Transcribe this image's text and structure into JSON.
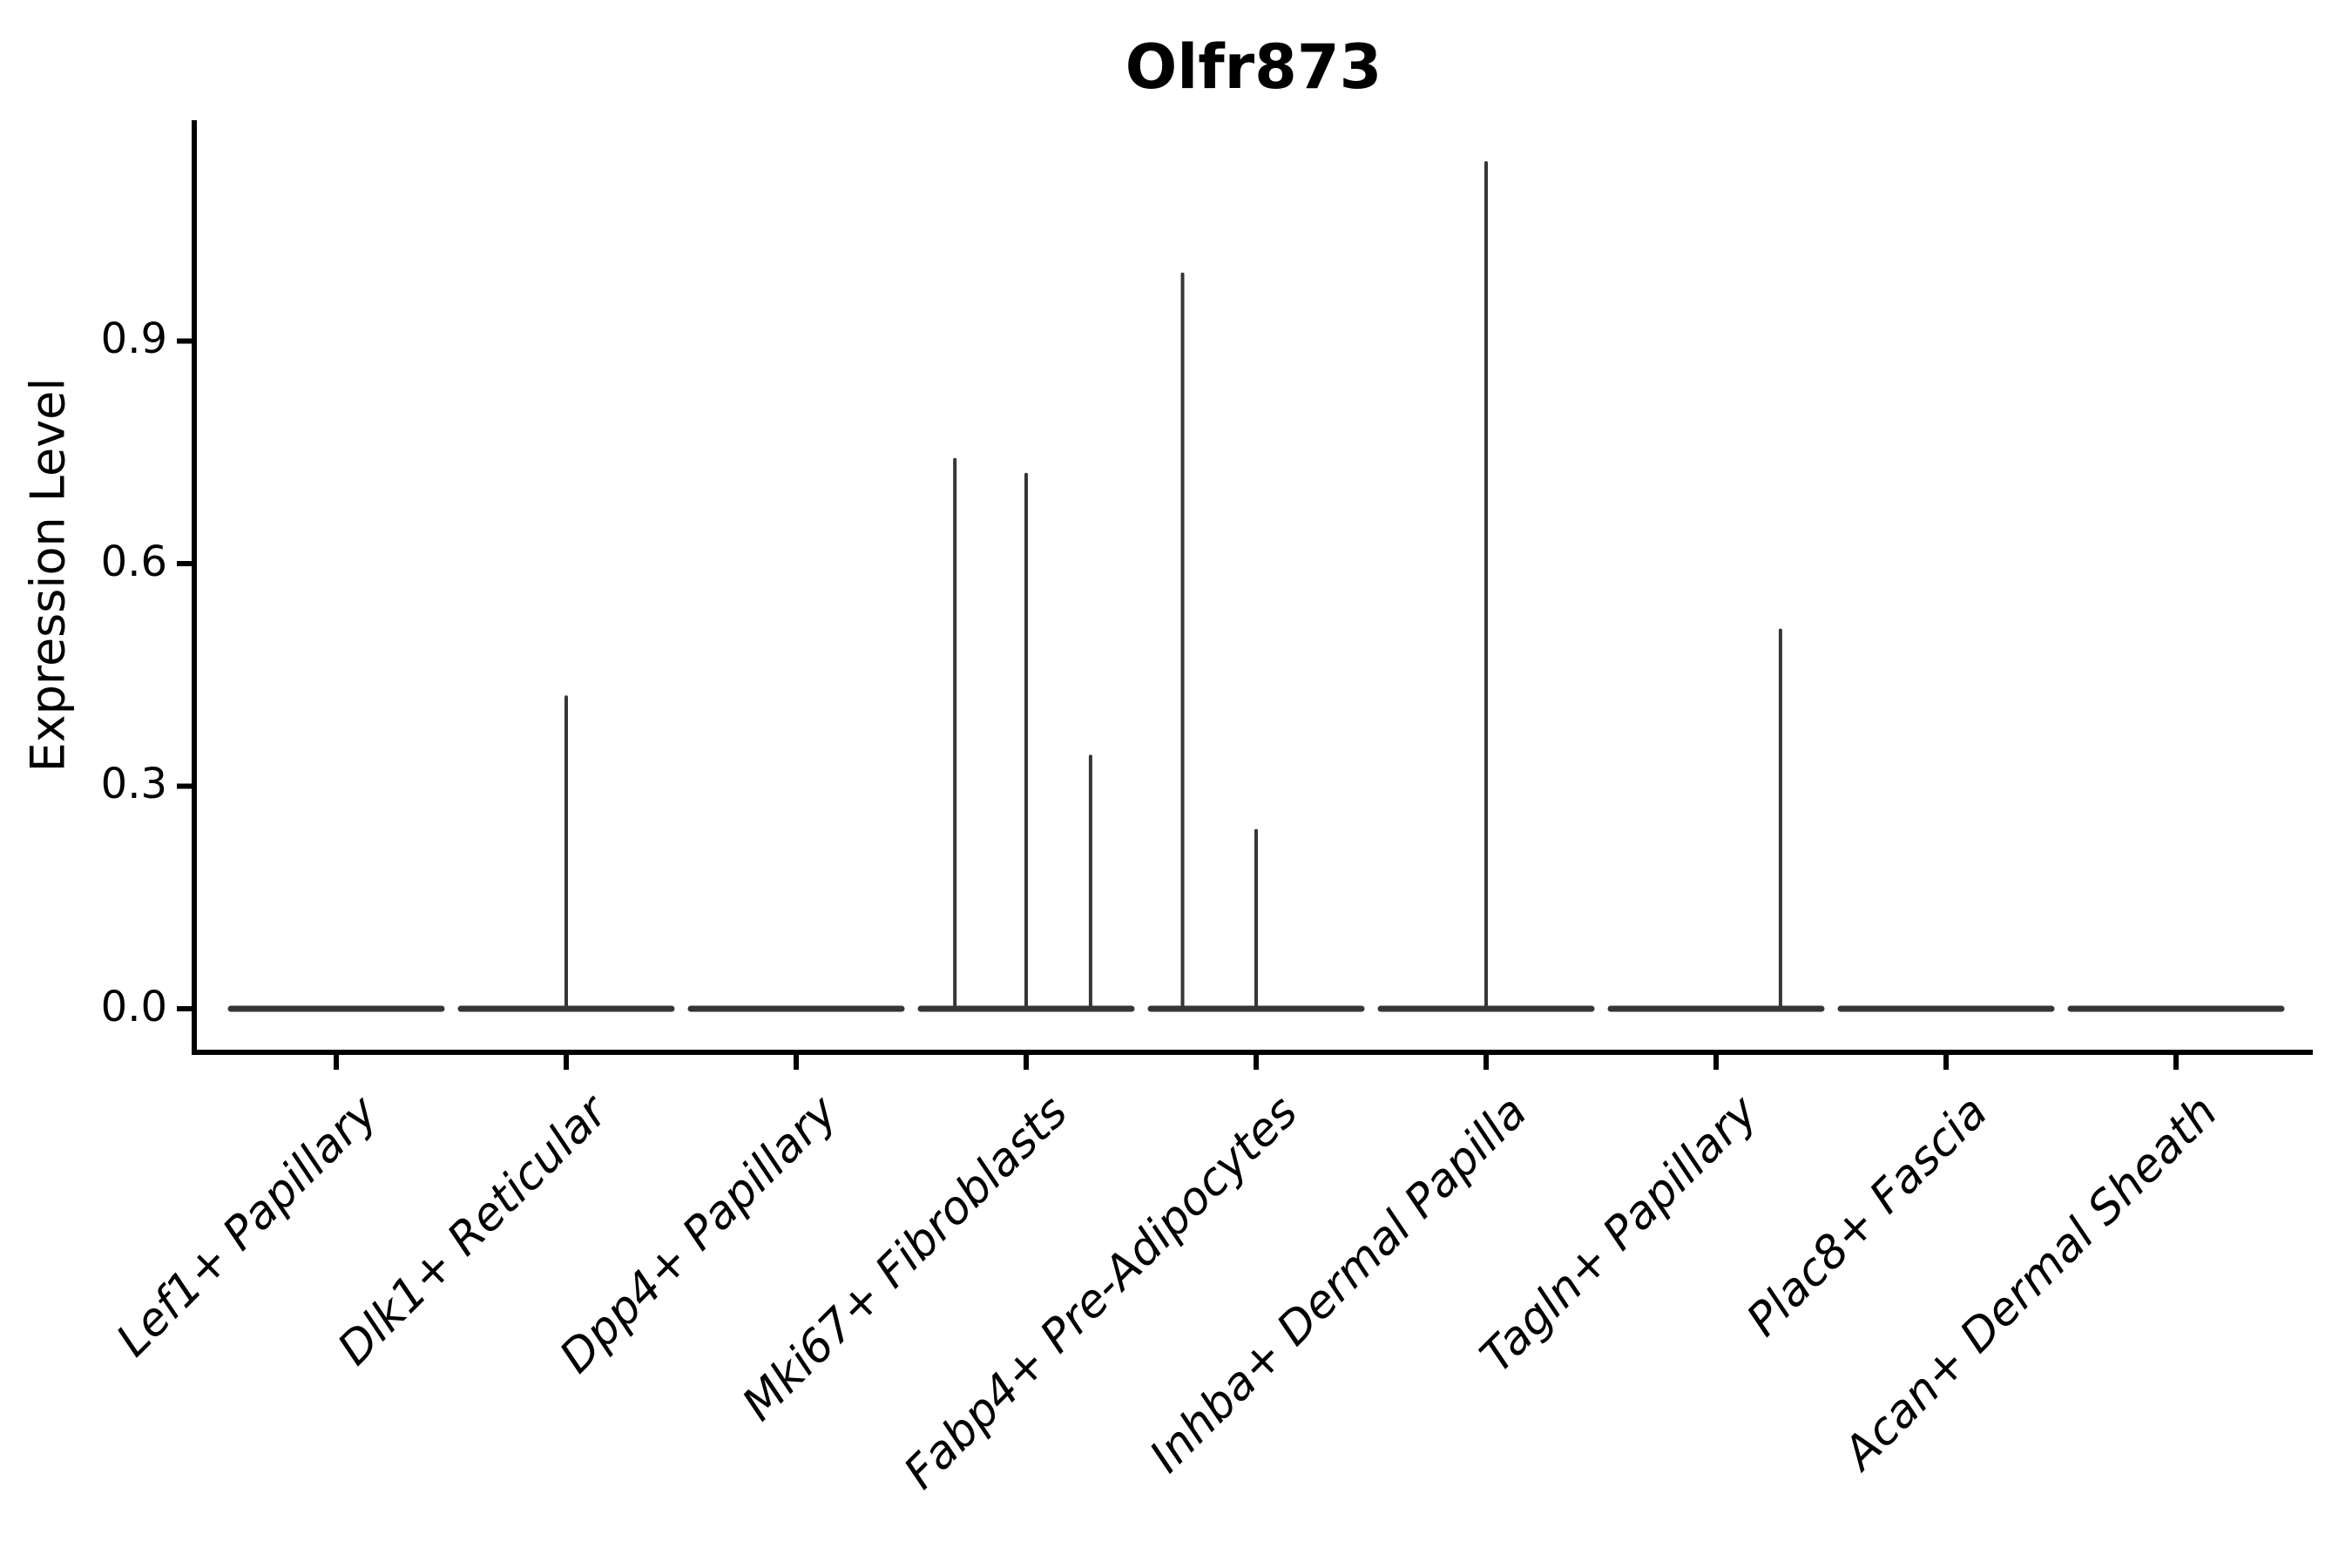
{
  "chart_data": {
    "type": "violin",
    "title": "Olfr873",
    "ylabel": "Expression Level",
    "xlabel": "",
    "ylim": [
      0,
      1.2
    ],
    "grid": false,
    "legend": "none",
    "axis_color": "#000000",
    "violin_color": "#363636",
    "yticks": [
      {
        "value": 0.0,
        "label": "0.0"
      },
      {
        "value": 0.3,
        "label": "0.3"
      },
      {
        "value": 0.6,
        "label": "0.6"
      },
      {
        "value": 0.9,
        "label": "0.9"
      }
    ],
    "categories": [
      "Lef1+ Papillary",
      "Dlk1+ Reticular",
      "Dpp4+ Papillary",
      "Mki67+ Fibroblasts",
      "Fabp4+ Pre-Adipocytes",
      "Inhba+ Dermal Papilla",
      "Tagln+ Papillary",
      "Plac8+ Fascia",
      "Acan+ Dermal Sheath"
    ],
    "violins": [
      {
        "category": "Lef1+ Papillary",
        "base_value": 0.0,
        "spikes": []
      },
      {
        "category": "Dlk1+ Reticular",
        "base_value": 0.0,
        "spikes": [
          {
            "offset_frac": 0.0,
            "max_value": 0.42
          }
        ]
      },
      {
        "category": "Dpp4+ Papillary",
        "base_value": 0.0,
        "spikes": []
      },
      {
        "category": "Mki67+ Fibroblasts",
        "base_value": 0.0,
        "spikes": [
          {
            "offset_frac": -0.31,
            "max_value": 0.74
          },
          {
            "offset_frac": 0.0,
            "max_value": 0.72
          },
          {
            "offset_frac": 0.28,
            "max_value": 0.34
          }
        ]
      },
      {
        "category": "Fabp4+ Pre-Adipocytes",
        "base_value": 0.0,
        "spikes": [
          {
            "offset_frac": -0.32,
            "max_value": 0.99
          },
          {
            "offset_frac": 0.0,
            "max_value": 0.24
          }
        ]
      },
      {
        "category": "Inhba+ Dermal Papilla",
        "base_value": 0.0,
        "spikes": [
          {
            "offset_frac": 0.0,
            "max_value": 1.14
          }
        ]
      },
      {
        "category": "Tagln+ Papillary",
        "base_value": 0.0,
        "spikes": [
          {
            "offset_frac": 0.28,
            "max_value": 0.51
          }
        ]
      },
      {
        "category": "Plac8+ Fascia",
        "base_value": 0.0,
        "spikes": []
      },
      {
        "category": "Acan+ Dermal Sheath",
        "base_value": 0.0,
        "spikes": []
      }
    ]
  }
}
